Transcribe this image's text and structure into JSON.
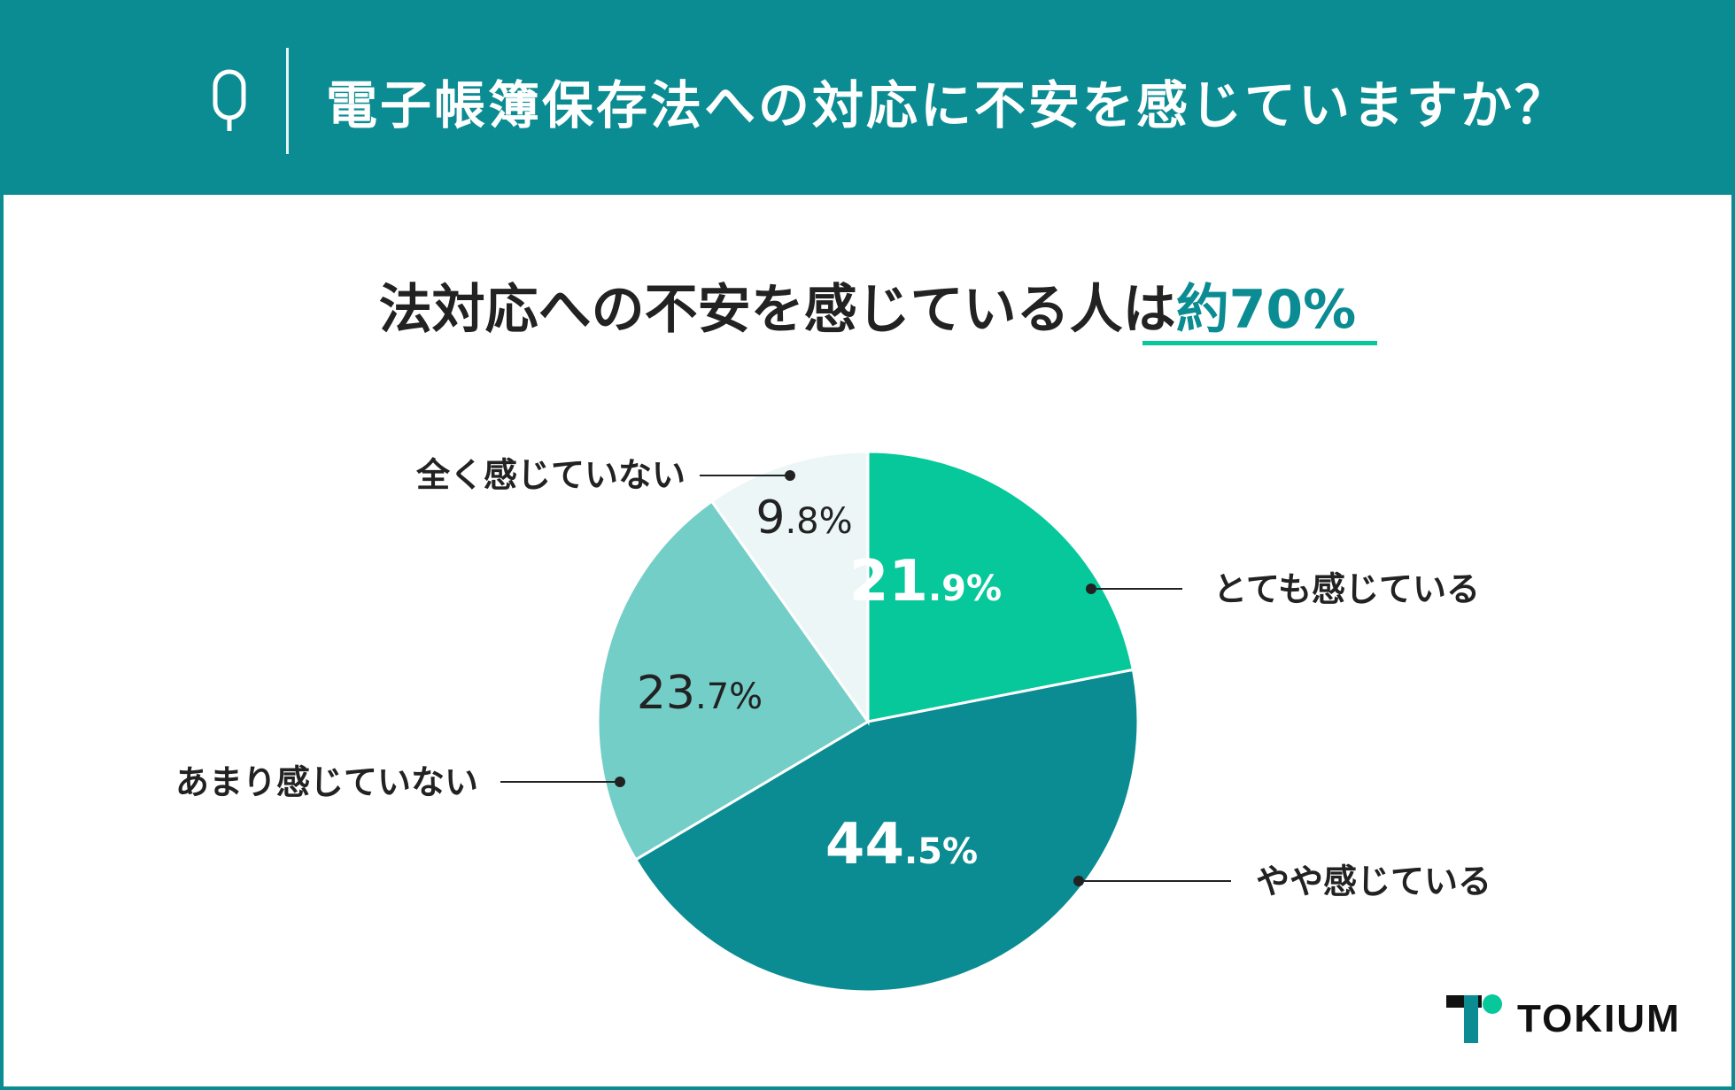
{
  "header": {
    "q_label": "Q",
    "question": "電子帳簿保存法への対応に不安を感じていますか？"
  },
  "headline": {
    "text": "法対応への不安を感じている人は",
    "highlight": "約70%"
  },
  "chart_data": {
    "type": "pie",
    "title": "",
    "slices": [
      {
        "label": "とても感じている",
        "value": 21.9,
        "int": "21",
        "dec": ".9%",
        "color": "#06c89a",
        "text_color": "#ffffff"
      },
      {
        "label": "やや感じている",
        "value": 44.5,
        "int": "44",
        "dec": ".5%",
        "color": "#0a8c92",
        "text_color": "#ffffff"
      },
      {
        "label": "あまり感じていない",
        "value": 23.7,
        "int": "23",
        "dec": ".7%",
        "color": "#74cec8",
        "text_color": "#222222"
      },
      {
        "label": "全く感じていない",
        "value": 9.8,
        "int": "9",
        "dec": ".8%",
        "color": "#ecf6f6",
        "text_color": "#222222"
      }
    ]
  },
  "logo": {
    "text": "TOKIUM"
  },
  "colors": {
    "brand": "#0a8c92",
    "accent": "#06c89a"
  }
}
